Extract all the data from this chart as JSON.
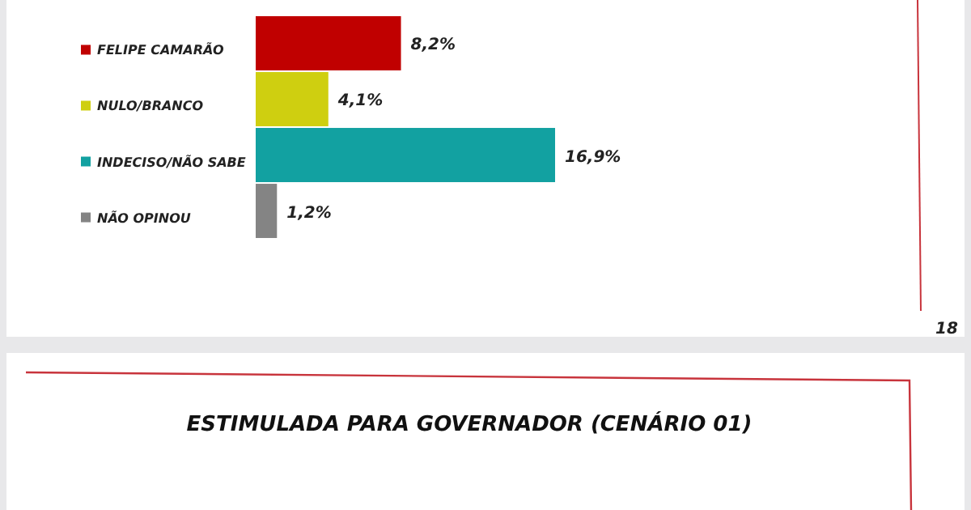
{
  "chart_data": {
    "type": "bar",
    "orientation": "horizontal",
    "categories": [
      "FELIPE CAMARÃO",
      "NULO/BRANCO",
      "INDECISO/NÃO SABE",
      "NÃO OPINOU"
    ],
    "values": [
      8.2,
      4.1,
      16.9,
      1.2
    ],
    "value_labels": [
      "8,2%",
      "4,1%",
      "16,9%",
      "1,2%"
    ],
    "colors": [
      "#c00000",
      "#cfcf10",
      "#12a1a1",
      "#848484"
    ],
    "annotations": [
      "18",
      "ESTIMULADA PARA GOVERNADOR (CENÁRIO 01)"
    ]
  }
}
